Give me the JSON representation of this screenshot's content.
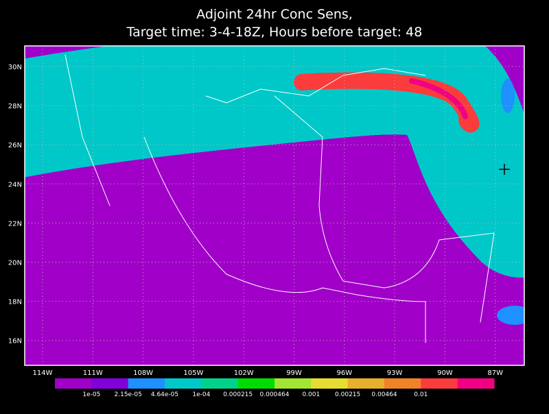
{
  "title": [
    "Adjoint 24hr Conc Sens,",
    "Target time: 3-4-18Z, Hours before target: 48"
  ],
  "lat_labels": [
    "30N",
    "28N",
    "26N",
    "24N",
    "22N",
    "20N",
    "18N",
    "16N"
  ],
  "lon_labels": [
    "114W",
    "111W",
    "108W",
    "105W",
    "102W",
    "99W",
    "96W",
    "93W",
    "90W",
    "87W"
  ],
  "colorbar": {
    "colors": [
      "#a000c8",
      "#8200dc",
      "#1e90ff",
      "#00c8c8",
      "#00d28c",
      "#00dc00",
      "#a0e632",
      "#e6dc32",
      "#e6af2d",
      "#f08228",
      "#fa3c3c",
      "#f00082"
    ],
    "labels": [
      "1e-05",
      "2.15e-05",
      "4.64e-05",
      "1e-04",
      "0.000215",
      "0.000464",
      "0.001",
      "0.00215",
      "0.00464",
      "0.01"
    ]
  }
}
